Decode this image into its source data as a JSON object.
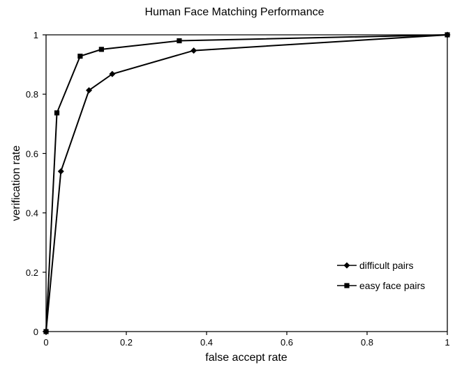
{
  "chart_data": {
    "type": "line",
    "title": "Human Face Matching Performance",
    "xlabel": "false accept rate",
    "ylabel": "verification rate",
    "xlim": [
      0,
      1
    ],
    "ylim": [
      0,
      1
    ],
    "xticks": [
      "0",
      "0.2",
      "0.4",
      "0.6",
      "0.8",
      "1"
    ],
    "yticks": [
      "0",
      "0.2",
      "0.4",
      "0.6",
      "0.8",
      "1"
    ],
    "grid": false,
    "legend_position": "bottom-right",
    "series": [
      {
        "name": "difficult pairs",
        "marker": "diamond",
        "x": [
          0,
          0.037,
          0.107,
          0.165,
          0.368,
          1
        ],
        "y": [
          0,
          0.54,
          0.813,
          0.868,
          0.947,
          1
        ]
      },
      {
        "name": "easy face pairs",
        "marker": "square",
        "x": [
          0,
          0.027,
          0.085,
          0.138,
          0.332,
          1
        ],
        "y": [
          0,
          0.737,
          0.928,
          0.951,
          0.98,
          1
        ]
      }
    ],
    "colors": {
      "line": "#000000",
      "axis": "#000000",
      "background": "#ffffff"
    }
  }
}
